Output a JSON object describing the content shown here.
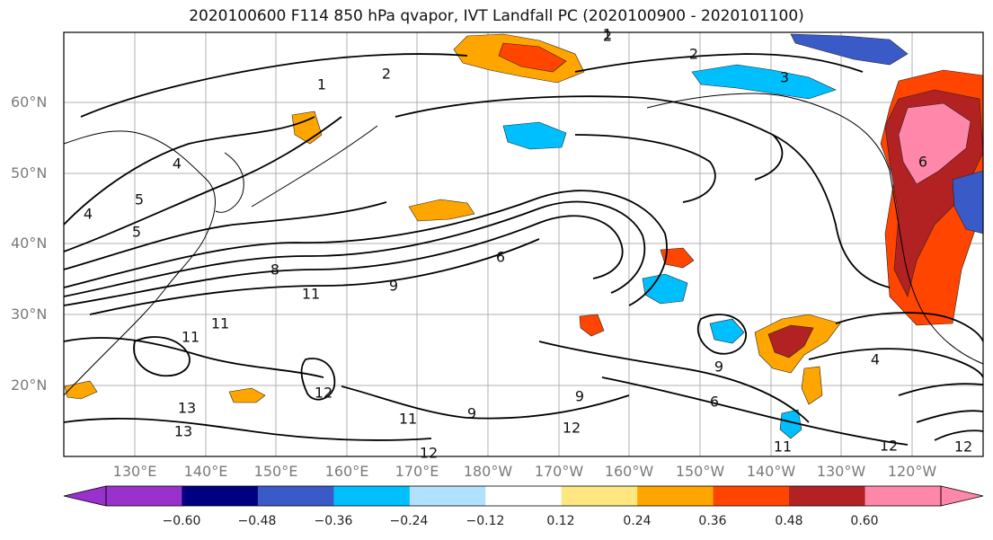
{
  "title": "2020100600 F114 850 hPa qvapor, IVT Landfall PC (2020100900 - 2020101100)",
  "lat_labels": [
    "60°N",
    "50°N",
    "40°N",
    "30°N",
    "20°N"
  ],
  "lon_labels": [
    "130°E",
    "140°E",
    "150°E",
    "160°E",
    "170°E",
    "180°W",
    "170°W",
    "160°W",
    "150°W",
    "140°W",
    "130°W",
    "120°W"
  ],
  "colorbar": {
    "colors": [
      "#9932cc",
      "#000080",
      "#3a5bc7",
      "#00bfff",
      "#b0e2ff",
      "#ffffff",
      "#ffe680",
      "#ffa500",
      "#ff4500",
      "#b22222",
      "#ff88aa"
    ],
    "tick_labels": [
      "−0.60",
      "−0.48",
      "−0.36",
      "−0.24",
      "−0.12",
      "0.12",
      "0.24",
      "0.36",
      "0.48",
      "0.60"
    ]
  },
  "contour_labels": [
    "2",
    "1",
    "2",
    "3",
    "4",
    "4",
    "5",
    "8",
    "9",
    "11",
    "11",
    "11",
    "12",
    "13",
    "13",
    "12",
    "9",
    "11",
    "9",
    "6",
    "12",
    "9",
    "11",
    "12",
    "4",
    "6",
    "2",
    "1",
    "12",
    "6",
    "5"
  ],
  "anomaly_colors": {
    "orange": "#ffa500",
    "red": "#ff4500",
    "dark_red": "#b22222",
    "pink": "#ff88aa",
    "yellow": "#ffe680",
    "cyan": "#00bfff",
    "light_blue": "#b0e2ff",
    "blue": "#3a5bc7",
    "navy": "#000080"
  }
}
